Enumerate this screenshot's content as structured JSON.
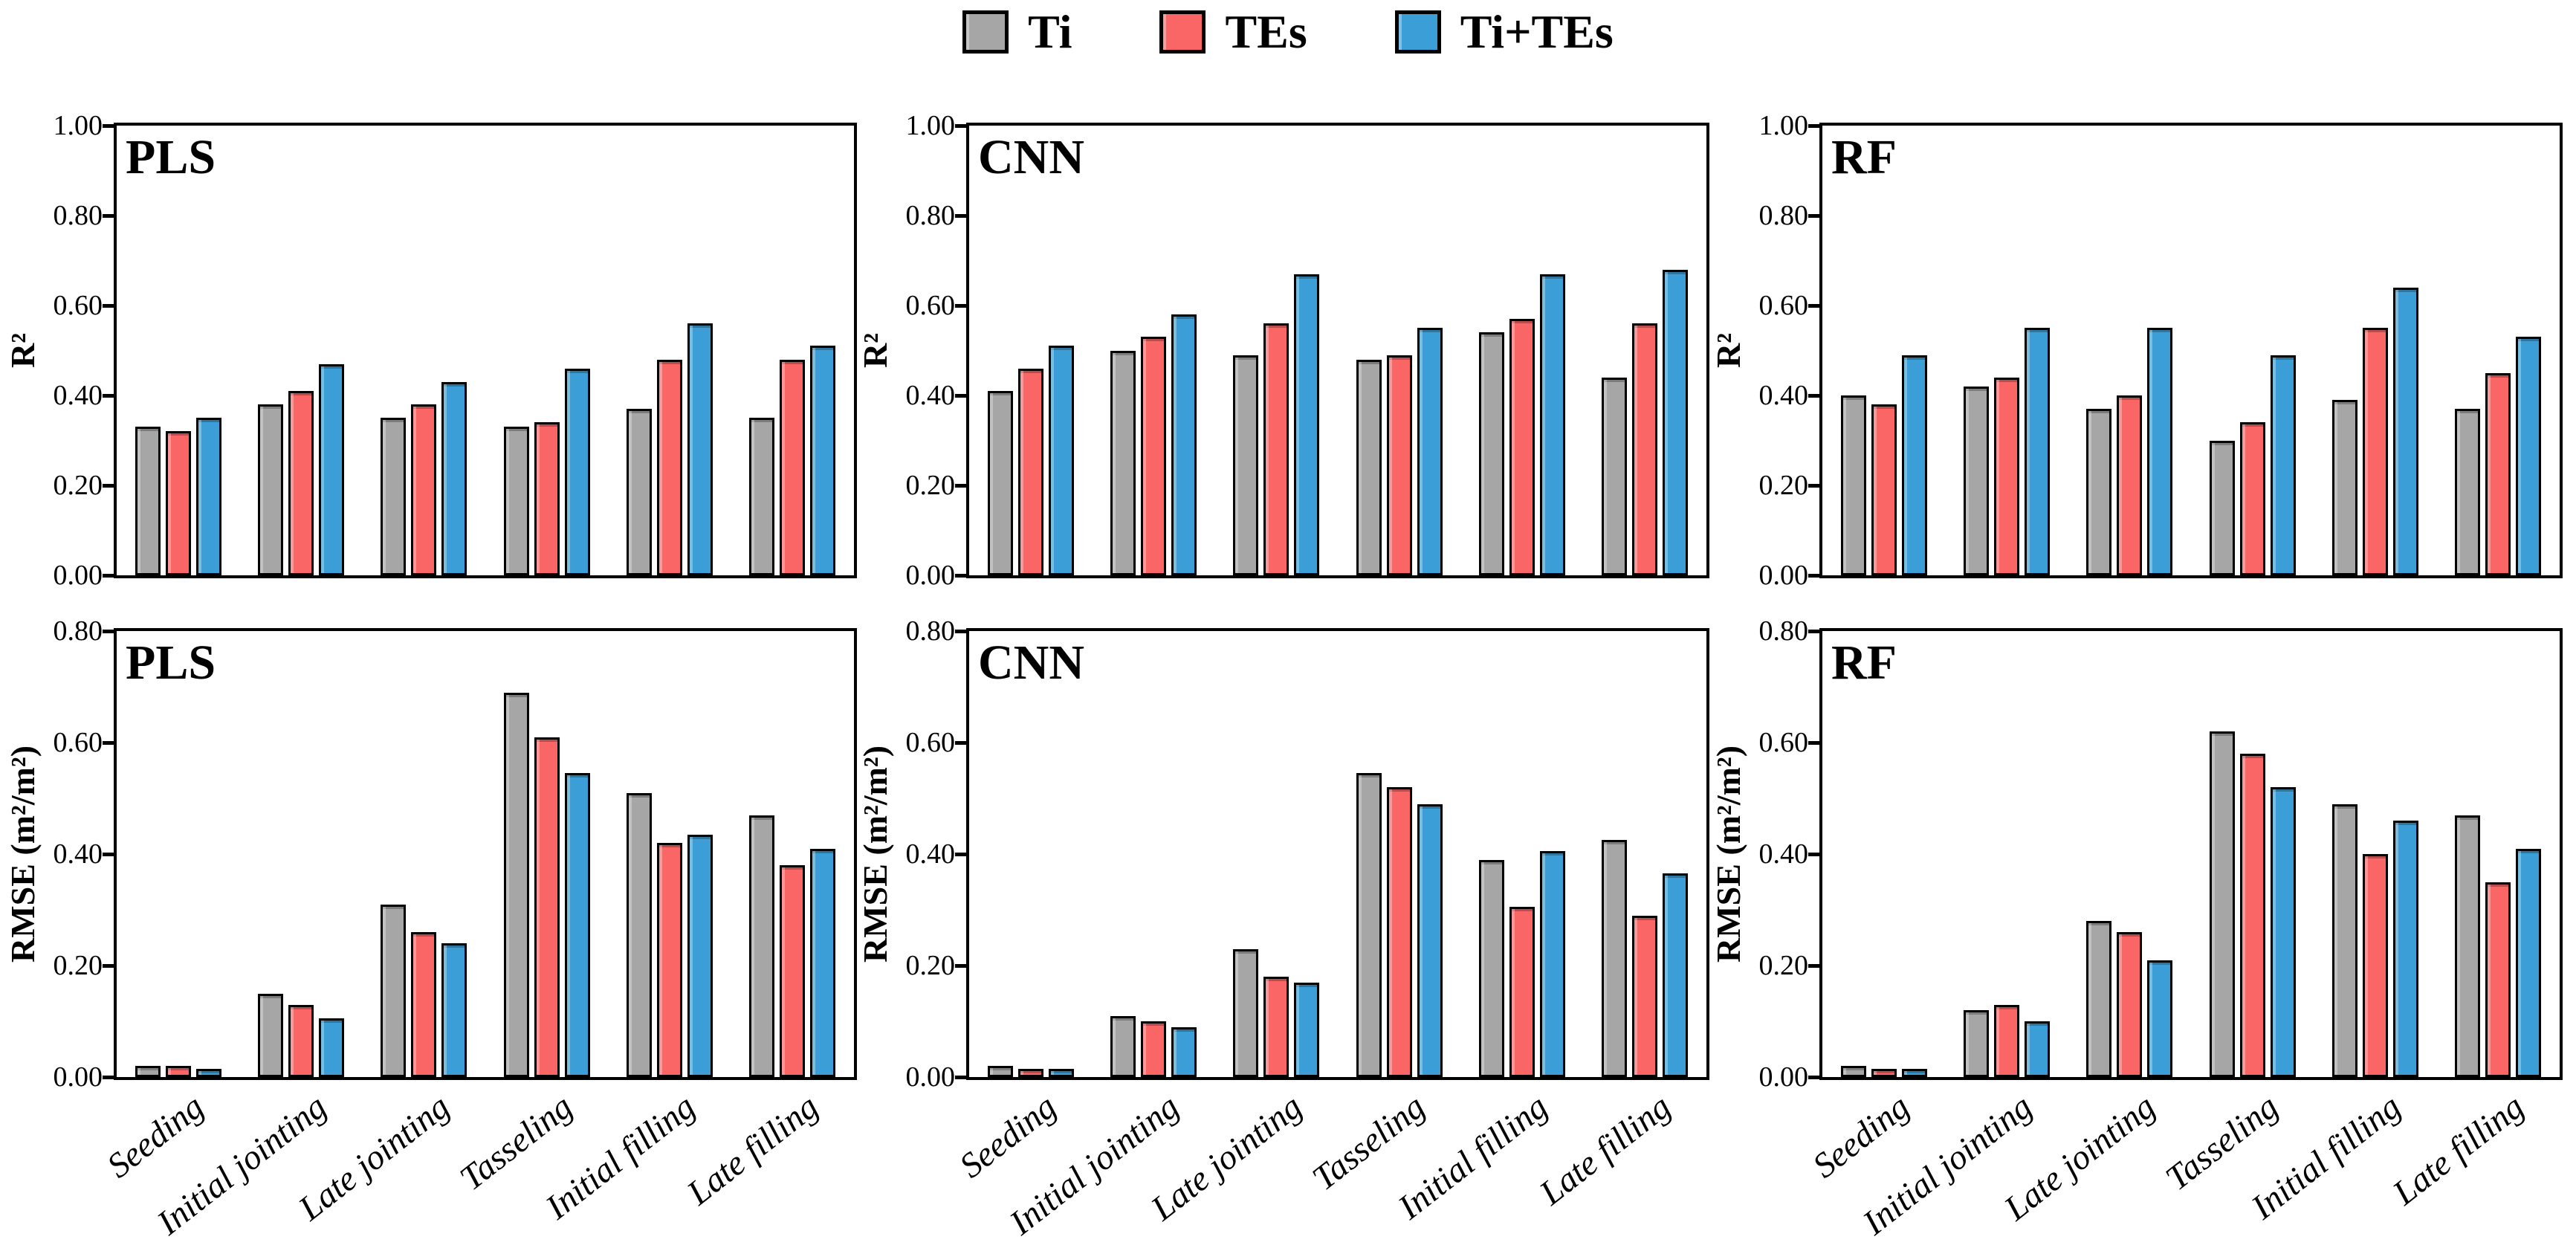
{
  "legend": {
    "items": [
      {
        "label": "Ti",
        "color": "#A6A6A6"
      },
      {
        "label": "TEs",
        "color": "#FA6666"
      },
      {
        "label": "Ti+TEs",
        "color": "#3B9ED6"
      }
    ],
    "position": "top-center"
  },
  "categories": [
    "Seeding",
    "Initial jointing",
    "Late jointing",
    "Tasseling",
    "Initial filling",
    "Late filling"
  ],
  "chart_data": [
    {
      "id": "pls-r2",
      "type": "bar",
      "panel_label": "PLS",
      "ylabel": "R²",
      "row": 0,
      "col": 0,
      "show_xlabels": false,
      "grid": false,
      "ylim": [
        0,
        1.0
      ],
      "yticks": [
        "0.00",
        "0.20",
        "0.40",
        "0.60",
        "0.80",
        "1.00"
      ],
      "categories": [
        "Seeding",
        "Initial jointing",
        "Late jointing",
        "Tasseling",
        "Initial filling",
        "Late filling"
      ],
      "series": [
        {
          "name": "Ti",
          "values": [
            0.33,
            0.38,
            0.35,
            0.33,
            0.37,
            0.35
          ]
        },
        {
          "name": "TEs",
          "values": [
            0.32,
            0.41,
            0.38,
            0.34,
            0.48,
            0.48
          ]
        },
        {
          "name": "Ti+TEs",
          "values": [
            0.35,
            0.47,
            0.43,
            0.46,
            0.56,
            0.51
          ]
        }
      ]
    },
    {
      "id": "cnn-r2",
      "type": "bar",
      "panel_label": "CNN",
      "ylabel": "R²",
      "row": 0,
      "col": 1,
      "show_xlabels": false,
      "grid": false,
      "ylim": [
        0,
        1.0
      ],
      "yticks": [
        "0.00",
        "0.20",
        "0.40",
        "0.60",
        "0.80",
        "1.00"
      ],
      "categories": [
        "Seeding",
        "Initial jointing",
        "Late jointing",
        "Tasseling",
        "Initial filling",
        "Late filling"
      ],
      "series": [
        {
          "name": "Ti",
          "values": [
            0.41,
            0.5,
            0.49,
            0.48,
            0.54,
            0.44
          ]
        },
        {
          "name": "TEs",
          "values": [
            0.46,
            0.53,
            0.56,
            0.49,
            0.57,
            0.56
          ]
        },
        {
          "name": "Ti+TEs",
          "values": [
            0.51,
            0.58,
            0.67,
            0.55,
            0.67,
            0.68
          ]
        }
      ]
    },
    {
      "id": "rf-r2",
      "type": "bar",
      "panel_label": "RF",
      "ylabel": "R²",
      "row": 0,
      "col": 2,
      "show_xlabels": false,
      "grid": false,
      "ylim": [
        0,
        1.0
      ],
      "yticks": [
        "0.00",
        "0.20",
        "0.40",
        "0.60",
        "0.80",
        "1.00"
      ],
      "categories": [
        "Seeding",
        "Initial jointing",
        "Late jointing",
        "Tasseling",
        "Initial filling",
        "Late filling"
      ],
      "series": [
        {
          "name": "Ti",
          "values": [
            0.4,
            0.42,
            0.37,
            0.3,
            0.39,
            0.37
          ]
        },
        {
          "name": "TEs",
          "values": [
            0.38,
            0.44,
            0.4,
            0.34,
            0.55,
            0.45
          ]
        },
        {
          "name": "Ti+TEs",
          "values": [
            0.49,
            0.55,
            0.55,
            0.49,
            0.64,
            0.53
          ]
        }
      ]
    },
    {
      "id": "pls-rmse",
      "type": "bar",
      "panel_label": "PLS",
      "ylabel": "RMSE (m²/m²)",
      "row": 1,
      "col": 0,
      "show_xlabels": true,
      "grid": false,
      "ylim": [
        0,
        0.8
      ],
      "yticks": [
        "0.00",
        "0.20",
        "0.40",
        "0.60",
        "0.80"
      ],
      "categories": [
        "Seeding",
        "Initial jointing",
        "Late jointing",
        "Tasseling",
        "Initial filling",
        "Late filling"
      ],
      "series": [
        {
          "name": "Ti",
          "values": [
            0.02,
            0.15,
            0.31,
            0.69,
            0.51,
            0.47
          ]
        },
        {
          "name": "TEs",
          "values": [
            0.02,
            0.13,
            0.26,
            0.61,
            0.42,
            0.38
          ]
        },
        {
          "name": "Ti+TEs",
          "values": [
            0.015,
            0.105,
            0.24,
            0.545,
            0.435,
            0.41
          ]
        }
      ]
    },
    {
      "id": "cnn-rmse",
      "type": "bar",
      "panel_label": "CNN",
      "ylabel": "RMSE (m²/m²)",
      "row": 1,
      "col": 1,
      "show_xlabels": true,
      "grid": false,
      "ylim": [
        0,
        0.8
      ],
      "yticks": [
        "0.00",
        "0.20",
        "0.40",
        "0.60",
        "0.80"
      ],
      "categories": [
        "Seeding",
        "Initial jointing",
        "Late jointing",
        "Tasseling",
        "Initial filling",
        "Late filling"
      ],
      "series": [
        {
          "name": "Ti",
          "values": [
            0.02,
            0.11,
            0.23,
            0.545,
            0.39,
            0.425
          ]
        },
        {
          "name": "TEs",
          "values": [
            0.015,
            0.1,
            0.18,
            0.52,
            0.305,
            0.29
          ]
        },
        {
          "name": "Ti+TEs",
          "values": [
            0.015,
            0.09,
            0.17,
            0.49,
            0.405,
            0.365
          ]
        }
      ]
    },
    {
      "id": "rf-rmse",
      "type": "bar",
      "panel_label": "RF",
      "ylabel": "RMSE (m²/m²)",
      "row": 1,
      "col": 2,
      "show_xlabels": true,
      "grid": false,
      "ylim": [
        0,
        0.8
      ],
      "yticks": [
        "0.00",
        "0.20",
        "0.40",
        "0.60",
        "0.80"
      ],
      "categories": [
        "Seeding",
        "Initial jointing",
        "Late jointing",
        "Tasseling",
        "Initial filling",
        "Late filling"
      ],
      "series": [
        {
          "name": "Ti",
          "values": [
            0.02,
            0.12,
            0.28,
            0.62,
            0.49,
            0.47
          ]
        },
        {
          "name": "TEs",
          "values": [
            0.015,
            0.13,
            0.26,
            0.58,
            0.4,
            0.35
          ]
        },
        {
          "name": "Ti+TEs",
          "values": [
            0.015,
            0.1,
            0.21,
            0.52,
            0.46,
            0.41
          ]
        }
      ]
    }
  ]
}
